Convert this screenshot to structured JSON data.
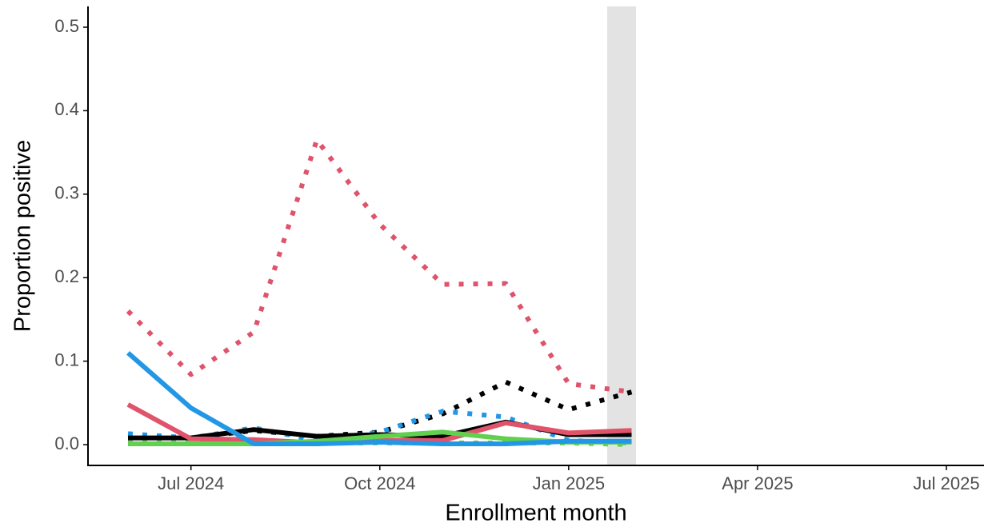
{
  "chart_data": {
    "type": "line",
    "xlabel": "Enrollment month",
    "ylabel": "Proportion positive",
    "x": [
      "2024-06",
      "2024-07",
      "2024-08",
      "2024-09",
      "2024-10",
      "2024-11",
      "2024-12",
      "2025-01",
      "2025-02"
    ],
    "series": [
      {
        "color": "#DF536B",
        "style": "dotted",
        "values": [
          0.16,
          0.084,
          0.135,
          0.365,
          0.264,
          0.192,
          0.193,
          0.073,
          0.063
        ]
      },
      {
        "color": "#000000",
        "style": "dotted",
        "values": [
          0.008,
          0.008,
          0.017,
          0.01,
          0.015,
          0.037,
          0.075,
          0.042,
          0.063
        ]
      },
      {
        "color": "#2297E6",
        "style": "dotted",
        "values": [
          0.013,
          0.008,
          0.02,
          0.005,
          0.015,
          0.04,
          0.033,
          0.005,
          0.002
        ]
      },
      {
        "color": "#61D04F",
        "style": "dotted",
        "values": [
          0.002,
          0.002,
          0.002,
          0.002,
          0.002,
          0.002,
          0.002,
          0.002,
          0.0
        ]
      },
      {
        "color": "#000000",
        "style": "solid",
        "values": [
          0.008,
          0.008,
          0.018,
          0.01,
          0.012,
          0.01,
          0.027,
          0.012,
          0.012
        ]
      },
      {
        "color": "#DF536B",
        "style": "solid",
        "values": [
          0.048,
          0.007,
          0.006,
          0.002,
          0.005,
          0.005,
          0.026,
          0.014,
          0.017
        ]
      },
      {
        "color": "#61D04F",
        "style": "solid",
        "values": [
          0.001,
          0.001,
          0.001,
          0.004,
          0.01,
          0.015,
          0.007,
          0.003,
          0.003
        ]
      },
      {
        "color": "#2297E6",
        "style": "solid",
        "values": [
          0.11,
          0.044,
          0.001,
          0.001,
          0.003,
          0.001,
          0.001,
          0.004,
          0.004
        ]
      }
    ],
    "xlim": [
      "2024-06",
      "2025-07"
    ],
    "xticks": [
      {
        "value": "2024-07",
        "label": "Jul 2024"
      },
      {
        "value": "2024-10",
        "label": "Oct 2024"
      },
      {
        "value": "2025-01",
        "label": "Jan 2025"
      },
      {
        "value": "2025-04",
        "label": "Apr 2025"
      },
      {
        "value": "2025-07",
        "label": "Jul 2025"
      }
    ],
    "ylim": [
      0,
      0.5
    ],
    "yticks": [
      {
        "value": 0,
        "label": "0.0"
      },
      0.1,
      0.2,
      0.3,
      0.4,
      0.5
    ]
  }
}
